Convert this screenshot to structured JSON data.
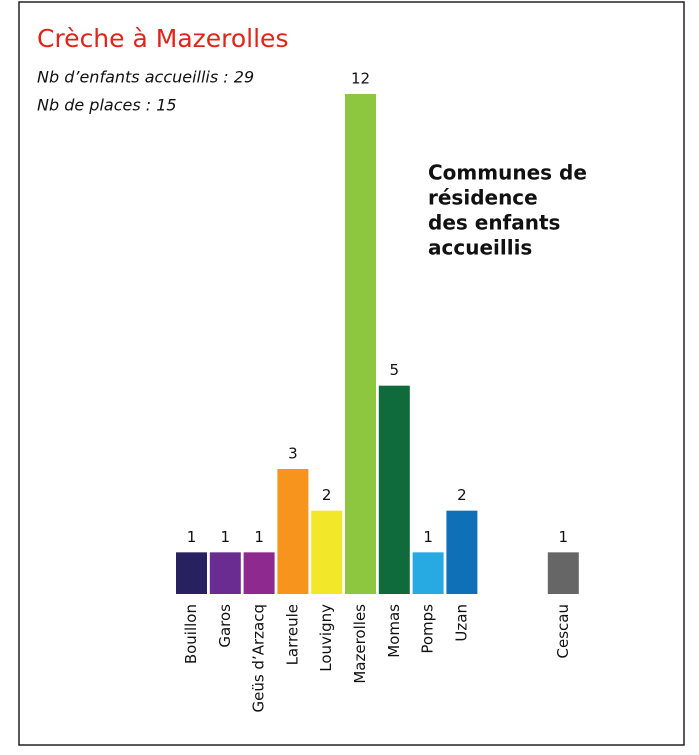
{
  "chart_data": {
    "type": "bar",
    "title": "Crèche à Mazerolles",
    "subtitle": [
      "Nb d’enfants accueillis : 29",
      "Nb de places : 15"
    ],
    "annotation": [
      "Communes de",
      "résidence",
      "des enfants",
      "accueillis"
    ],
    "categories": [
      "Bouillon",
      "Garos",
      "Geüs d’Arzacq",
      "Larreule",
      "Louvigny",
      "Mazerolles",
      "Momas",
      "Pomps",
      "Uzan",
      null,
      null,
      "Cescau"
    ],
    "values": [
      1,
      1,
      1,
      3,
      2,
      12,
      5,
      1,
      2,
      null,
      null,
      1
    ],
    "colors": [
      "#27215f",
      "#6a2c91",
      "#8e2a8f",
      "#f7941d",
      "#f2e829",
      "#8dc63f",
      "#0f6b3b",
      "#27aae1",
      "#0f70b7",
      null,
      null,
      "#666666"
    ],
    "ylim": [
      0,
      12
    ]
  }
}
